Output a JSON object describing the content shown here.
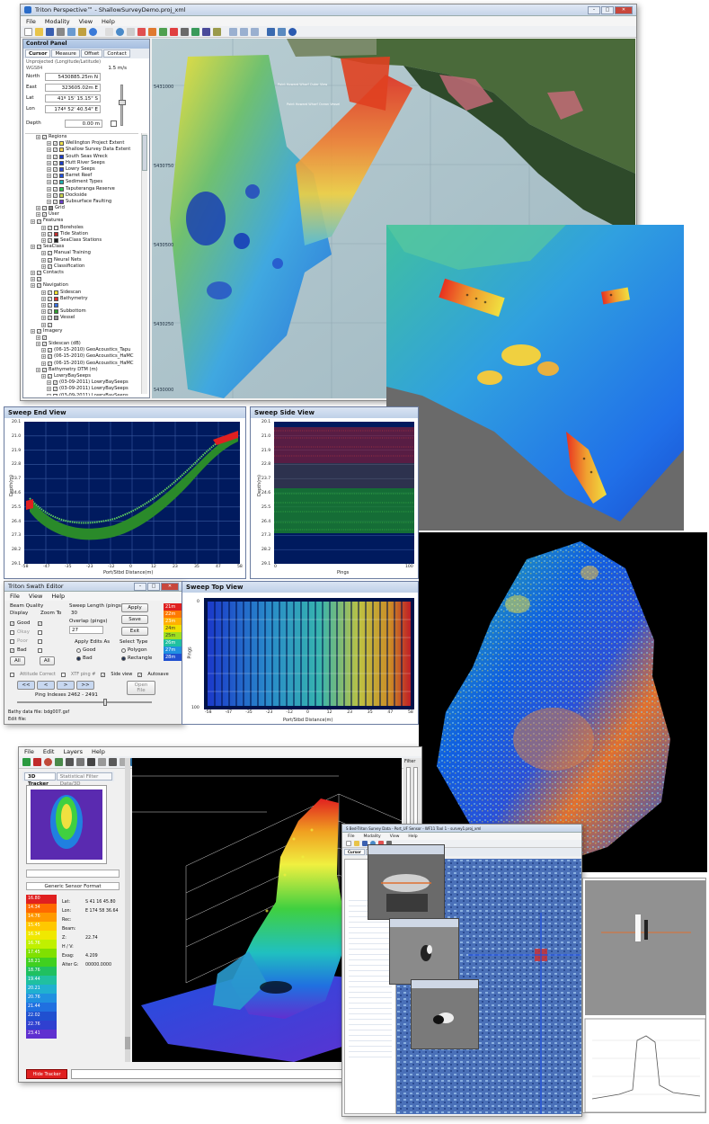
{
  "main_window": {
    "title": "Triton Perspective™ - ShallowSurveyDemo.proj_xml",
    "menu": [
      "File",
      "Modality",
      "View",
      "Help"
    ],
    "control_panel": {
      "title": "Control Panel",
      "tabs": [
        "Cursor",
        "Measure",
        "Offset",
        "Contact"
      ],
      "projection": "Unprojected (Longitude/Latitude)",
      "datum": "WGS84",
      "speed": "1.5 m/s",
      "north_label": "North",
      "north_value": "5430885.25m N",
      "east_label": "East",
      "east_value": "323605.02m E",
      "lat_label": "Lat",
      "lat_value": "41º 15' 15.15\" S",
      "lon_label": "Lon",
      "lon_value": "174º 52' 40.54\" E",
      "depth_label": "Depth",
      "depth_value": "0.00 m"
    },
    "tree": [
      {
        "label": "Regions",
        "indent": 2,
        "color": ""
      },
      {
        "label": "Wellington Project Extent",
        "indent": 4,
        "color": "#f2e24a"
      },
      {
        "label": "Shallow Survey Data Extent",
        "indent": 4,
        "color": "#f7d24a"
      },
      {
        "label": "South Seas Wreck",
        "indent": 4,
        "color": "#1a3cc8"
      },
      {
        "label": "Hutt River Seeps",
        "indent": 4,
        "color": "#1a3cc8"
      },
      {
        "label": "Lowry Seeps",
        "indent": 4,
        "color": "#2c49d6"
      },
      {
        "label": "Barret Reef",
        "indent": 4,
        "color": "#2050e0"
      },
      {
        "label": "Sediment Types",
        "indent": 4,
        "color": "#20b0b0"
      },
      {
        "label": "Taputeranga Reserve",
        "indent": 4,
        "color": "#2ec850"
      },
      {
        "label": "Dockside",
        "indent": 4,
        "color": "#c8d24a"
      },
      {
        "label": "Subsurface Faulting",
        "indent": 4,
        "color": "#6a40c8"
      },
      {
        "label": "Grid",
        "indent": 2,
        "color": "#888888"
      },
      {
        "label": "User",
        "indent": 2,
        "color": ""
      },
      {
        "label": "Features",
        "indent": 1,
        "color": ""
      },
      {
        "label": "Boreholes",
        "indent": 3,
        "color": "#ffffff"
      },
      {
        "label": "Tide Station",
        "indent": 3,
        "color": "#c03030"
      },
      {
        "label": "SeaClass Stations",
        "indent": 3,
        "color": "#202020"
      },
      {
        "label": "SeaClass",
        "indent": 1,
        "color": ""
      },
      {
        "label": "Manual Training",
        "indent": 3,
        "color": ""
      },
      {
        "label": "Neural Nets",
        "indent": 3,
        "color": ""
      },
      {
        "label": "Classification",
        "indent": 3,
        "color": ""
      },
      {
        "label": "Contacts",
        "indent": 1,
        "color": ""
      },
      {
        "label": "",
        "indent": 1,
        "color": ""
      },
      {
        "label": "Navigation",
        "indent": 1,
        "color": ""
      },
      {
        "label": "Sidescan",
        "indent": 3,
        "color": "#f0e030"
      },
      {
        "label": "Bathymetry",
        "indent": 3,
        "color": "#e03030"
      },
      {
        "label": "",
        "indent": 3,
        "color": "#3a70e0"
      },
      {
        "label": "Subbottom",
        "indent": 3,
        "color": "#30a030"
      },
      {
        "label": "Vessel",
        "indent": 3,
        "color": "#9a9a9a"
      },
      {
        "label": "",
        "indent": 3,
        "color": ""
      },
      {
        "label": "Imagery",
        "indent": 1,
        "color": ""
      },
      {
        "label": "",
        "indent": 2,
        "color": ""
      },
      {
        "label": "Sidescan (dB)",
        "indent": 2,
        "color": ""
      },
      {
        "label": "(06-15-2010) GeoAcoustics_Tapu",
        "indent": 3,
        "color": ""
      },
      {
        "label": "(06-15-2010) GeoAcoustics_HaMC",
        "indent": 3,
        "color": ""
      },
      {
        "label": "(06-15-2010) GeoAcoustics_HaMC",
        "indent": 3,
        "color": ""
      },
      {
        "label": "Bathymetry DTM (m)",
        "indent": 2,
        "color": ""
      },
      {
        "label": "LowryBaySeeps",
        "indent": 3,
        "color": ""
      },
      {
        "label": "(03-09-2011) LowryBaySeeps",
        "indent": 4,
        "color": ""
      },
      {
        "label": "(03-09-2011) LowryBaySeeps",
        "indent": 4,
        "color": ""
      },
      {
        "label": "(03-09-2011) LowryBaySeeps",
        "indent": 4,
        "color": ""
      }
    ],
    "map": {
      "northing_ticks": [
        "5431000",
        "5430750",
        "5430500",
        "5430250",
        "5430000"
      ],
      "labels": [
        "Point Howard Wharf Ocean Vessel",
        "Point Howard Wharf Outer View"
      ]
    }
  },
  "sweep_end_view": {
    "title": "Sweep End View",
    "ylabel": "Depth(m)",
    "xlabel": "Port/Stbd Distance(m)",
    "y_ticks": [
      "20.1",
      "21.0",
      "21.9",
      "22.8",
      "23.7",
      "24.6",
      "25.5",
      "26.4",
      "27.3",
      "28.2",
      "29.1"
    ],
    "x_ticks": [
      "-58",
      "-47",
      "-35",
      "-23",
      "-12",
      "0",
      "12",
      "23",
      "35",
      "47",
      "58"
    ]
  },
  "sweep_side_view": {
    "title": "Sweep Side View",
    "ylabel": "Depth(m)",
    "xlabel": "Pings",
    "y_ticks": [
      "20.1",
      "21.0",
      "21.9",
      "22.8",
      "23.7",
      "24.6",
      "25.5",
      "26.4",
      "27.3",
      "28.2",
      "29.1"
    ],
    "x_ticks": [
      "0",
      "100"
    ]
  },
  "swath_editor": {
    "title": "Triton Swath Editor",
    "menu": [
      "File",
      "View",
      "Help"
    ],
    "beam_quality": "Beam Quality",
    "display": "Display",
    "zoom_to": "Zoom To",
    "quality_rows": [
      "Good",
      "Okay",
      "Poor",
      "Bad"
    ],
    "all": "All",
    "sweep_length_label": "Sweep Length (pings)",
    "sweep_length_value": "30",
    "overlap_label": "Overlap (pings)",
    "overlap_value": "27",
    "apply": "Apply",
    "save": "Save",
    "exit": "Exit",
    "apply_edits_as": "Apply Edits As",
    "good": "Good",
    "bad": "Bad",
    "select_type": "Select Type",
    "polygon": "Polygon",
    "rectangle": "Rectangle",
    "attitude_correct": "Attitude Correct",
    "xtf_ping": "XTF ping #",
    "side_view": "Side view",
    "autosave": "Autosave",
    "open_file": "Open File",
    "nav_buttons": [
      "<<",
      "<",
      ">",
      ">>"
    ],
    "ping_indexes": "Ping Indexes 2462 - 2491",
    "bathy_file": "Bathy data file: bdg007.gsf",
    "edit_file": "Edit file:",
    "depth_scale": [
      "21m",
      "22m",
      "23m",
      "24m",
      "25m",
      "26m",
      "27m",
      "28m"
    ]
  },
  "sweep_top_view": {
    "title": "Sweep Top View",
    "ylabel": "Pings",
    "xlabel": "Port/Stbd Distance(m)",
    "y_ticks": [
      "0",
      "100"
    ],
    "x_ticks": [
      "-58",
      "-47",
      "-35",
      "-23",
      "-12",
      "0",
      "12",
      "23",
      "35",
      "47",
      "58"
    ]
  },
  "window_3d": {
    "menu": [
      "File",
      "Edit",
      "Layers",
      "Help"
    ],
    "tabs": [
      "3D Tracker",
      "Statistical Filter Data/3D"
    ],
    "sensor": "Generic Sensor Format",
    "legend": [
      {
        "value": "16.80",
        "color": "#e02020"
      },
      {
        "value": "14.34",
        "color": "#ff6a00"
      },
      {
        "value": "14.76",
        "color": "#ff9a00"
      },
      {
        "value": "15.45",
        "color": "#ffc800"
      },
      {
        "value": "16.34",
        "color": "#f0e800"
      },
      {
        "value": "16.76",
        "color": "#c0f000"
      },
      {
        "value": "17.45",
        "color": "#80e000"
      },
      {
        "value": "18.21",
        "color": "#40d020"
      },
      {
        "value": "18.76",
        "color": "#20c060"
      },
      {
        "value": "19.44",
        "color": "#20c0a0"
      },
      {
        "value": "20.21",
        "color": "#20b0d0"
      },
      {
        "value": "20.76",
        "color": "#2090e0"
      },
      {
        "value": "21.44",
        "color": "#2070e0"
      },
      {
        "value": "22.02",
        "color": "#2050d0"
      },
      {
        "value": "22.76",
        "color": "#3040d0"
      },
      {
        "value": "23.41",
        "color": "#6030d0"
      }
    ],
    "info": [
      {
        "k": "Lat:",
        "v": "S 41 16 45.80"
      },
      {
        "k": "Lon:",
        "v": "E 174 58 36.64"
      },
      {
        "k": "Rec:",
        "v": ""
      },
      {
        "k": "Beam:",
        "v": ""
      },
      {
        "k": "Z:",
        "v": "22.74"
      },
      {
        "k": "H / V:",
        "v": ""
      },
      {
        "k": "Exag:",
        "v": "4.209"
      },
      {
        "k": "Alter G:",
        "v": "00000.0000"
      }
    ],
    "status": "Hide Tracker",
    "filter_label": "Filter"
  },
  "window_sidescan": {
    "title": "S Bed-Triton Survey Data - Port_UF Sensor - WF11 Tool 1 - survey1.proj_xml",
    "menu": [
      "File",
      "Modality",
      "View",
      "Help"
    ],
    "tabs": [
      "Cursor",
      "Measure",
      "Offset",
      "Contact"
    ]
  }
}
